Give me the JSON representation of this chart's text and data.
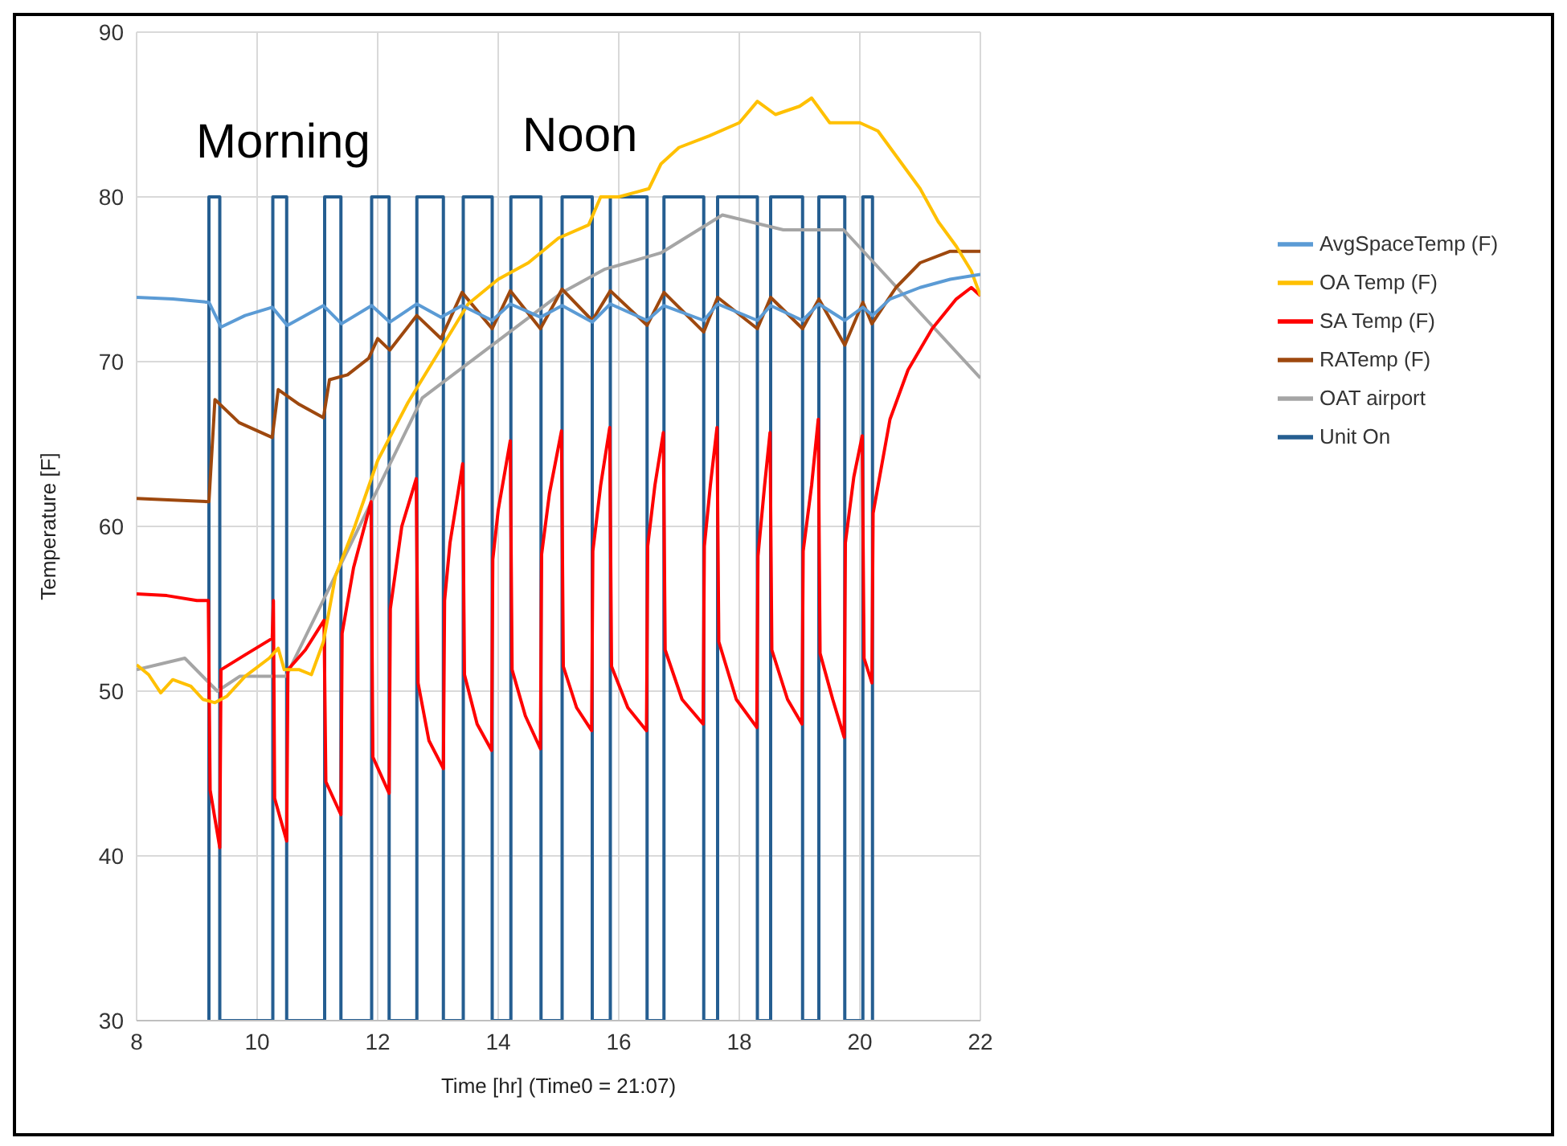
{
  "chart_data": {
    "type": "line",
    "xlabel": "Time [hr] (Time0 = 21:07)",
    "ylabel": "Temperature [F]",
    "xlim": [
      8,
      22
    ],
    "xticks": [
      8,
      10,
      12,
      14,
      16,
      18,
      20,
      22
    ],
    "ylim": [
      30,
      90
    ],
    "yticks": [
      30,
      40,
      50,
      60,
      70,
      80,
      90
    ],
    "grid": true,
    "legend": "right",
    "annotations": [
      "Morning",
      "Noon"
    ],
    "series": [
      {
        "name": "AvgSpaceTemp (F)",
        "color": "#5b9bd5",
        "x": [
          8,
          8.6,
          9.2,
          9.4,
          9.8,
          10.25,
          10.5,
          11.1,
          11.4,
          11.9,
          12.2,
          12.65,
          13.05,
          13.4,
          13.9,
          14.2,
          14.7,
          15.06,
          15.56,
          15.86,
          16.47,
          16.75,
          17.41,
          17.64,
          18.3,
          18.52,
          19.05,
          19.32,
          19.75,
          20.05,
          20.21,
          20.5,
          21,
          21.5,
          22
        ],
        "values": [
          73.9,
          73.8,
          73.6,
          72.1,
          72.8,
          73.3,
          72.2,
          73.4,
          72.3,
          73.4,
          72.4,
          73.5,
          72.7,
          73.4,
          72.5,
          73.5,
          72.7,
          73.4,
          72.4,
          73.5,
          72.5,
          73.4,
          72.5,
          73.5,
          72.5,
          73.4,
          72.5,
          73.5,
          72.5,
          73.3,
          72.8,
          73.8,
          74.5,
          75,
          75.3
        ]
      },
      {
        "name": "OA Temp (F)",
        "color": "#ffc000",
        "x": [
          8,
          8.2,
          8.4,
          8.6,
          8.9,
          9.1,
          9.3,
          9.5,
          9.8,
          10.2,
          10.35,
          10.45,
          10.7,
          10.9,
          11.1,
          11.3,
          11.6,
          12,
          12.5,
          13,
          13.5,
          14,
          14.5,
          15,
          15.5,
          15.7,
          16,
          16.3,
          16.5,
          16.7,
          17,
          17.5,
          18,
          18.3,
          18.6,
          19,
          19.2,
          19.5,
          20,
          20.3,
          20.6,
          21,
          21.3,
          21.6,
          21.85,
          22
        ],
        "values": [
          51.6,
          51,
          49.9,
          50.7,
          50.3,
          49.5,
          49.3,
          49.7,
          50.9,
          52,
          52.6,
          51.3,
          51.3,
          51,
          53,
          57,
          59.8,
          64,
          67.5,
          70.5,
          73.5,
          75,
          76,
          77.5,
          78.3,
          80,
          80,
          80.3,
          80.5,
          82,
          83,
          83.7,
          84.5,
          85.8,
          85,
          85.5,
          86,
          84.5,
          84.5,
          84,
          82.5,
          80.5,
          78.5,
          77,
          75.5,
          74
        ]
      },
      {
        "name": "SA Temp (F)",
        "color": "#ff0000",
        "x": [
          8,
          8.5,
          9,
          9.19,
          9.22,
          9.38,
          9.4,
          9.8,
          10.25,
          10.27,
          10.29,
          10.49,
          10.51,
          10.8,
          11.11,
          11.14,
          11.39,
          11.41,
          11.6,
          11.89,
          11.92,
          12.19,
          12.21,
          12.4,
          12.64,
          12.67,
          12.85,
          13.09,
          13.11,
          13.2,
          13.41,
          13.44,
          13.65,
          13.89,
          13.91,
          14,
          14.2,
          14.23,
          14.45,
          14.7,
          14.72,
          14.85,
          15.05,
          15.08,
          15.3,
          15.55,
          15.57,
          15.7,
          15.85,
          15.88,
          16.15,
          16.46,
          16.48,
          16.6,
          16.74,
          16.77,
          17.05,
          17.4,
          17.42,
          17.52,
          17.63,
          17.66,
          17.95,
          18.29,
          18.31,
          18.42,
          18.51,
          18.54,
          18.8,
          19.04,
          19.06,
          19.2,
          19.31,
          19.34,
          19.55,
          19.74,
          19.76,
          19.9,
          20.04,
          20.07,
          20.2,
          20.22,
          20.5,
          20.8,
          21.2,
          21.6,
          21.85,
          22
        ],
        "values": [
          55.9,
          55.8,
          55.5,
          55.5,
          44,
          40.5,
          51.3,
          52.2,
          53.2,
          55.5,
          43.5,
          40.9,
          51.3,
          52.5,
          54.3,
          44.5,
          42.5,
          53.5,
          57.5,
          61.5,
          46,
          43.8,
          55,
          60,
          62.9,
          50.5,
          47,
          45.3,
          55.5,
          59,
          63.8,
          51,
          48,
          46.4,
          58,
          61,
          65.2,
          51.3,
          48.5,
          46.5,
          58.3,
          62,
          65.8,
          51.5,
          49,
          47.6,
          58.5,
          62.5,
          66,
          51.5,
          49,
          47.6,
          58.8,
          62.5,
          65.7,
          52.5,
          49.5,
          48,
          58.8,
          62.5,
          66,
          53,
          49.5,
          47.8,
          58.2,
          62.5,
          65.7,
          52.5,
          49.5,
          48,
          58.5,
          62.5,
          66.5,
          52.3,
          49.5,
          47.2,
          59,
          63,
          65.5,
          52,
          50.5,
          60.8,
          66.5,
          69.5,
          72,
          73.8,
          74.5,
          74
        ]
      },
      {
        "name": "RATemp (F)",
        "color": "#9e480e",
        "x": [
          8,
          8.6,
          9.2,
          9.3,
          9.7,
          10.25,
          10.35,
          10.7,
          11.1,
          11.2,
          11.5,
          11.85,
          12,
          12.2,
          12.65,
          13.05,
          13.4,
          13.9,
          14.2,
          14.7,
          15.06,
          15.56,
          15.86,
          16.47,
          16.75,
          17.41,
          17.64,
          18.3,
          18.52,
          19.05,
          19.32,
          19.75,
          20.05,
          20.2,
          20.6,
          21,
          21.5,
          22
        ],
        "values": [
          61.7,
          61.6,
          61.5,
          67.7,
          66.3,
          65.4,
          68.3,
          67.4,
          66.6,
          68.9,
          69.2,
          70.2,
          71.4,
          70.7,
          72.8,
          71.4,
          74.2,
          72,
          74.3,
          72,
          74.4,
          72.5,
          74.3,
          72.2,
          74.2,
          71.8,
          73.9,
          72,
          73.9,
          72,
          73.8,
          71,
          73.6,
          72.3,
          74.5,
          76,
          76.7,
          76.7
        ]
      },
      {
        "name": "OAT airport",
        "color": "#a5a5a5",
        "x": [
          8,
          8.8,
          9.34,
          9.71,
          10.48,
          12.74,
          15.06,
          15.76,
          16.7,
          17.72,
          18.73,
          19.73,
          22
        ],
        "values": [
          51.3,
          52,
          50,
          50.9,
          50.9,
          67.8,
          74.2,
          75.6,
          76.6,
          78.9,
          78,
          78,
          69
        ]
      },
      {
        "name": "Unit On",
        "color": "#255e91",
        "x": [
          9.2,
          9.2,
          9.38,
          9.38,
          10.26,
          10.26,
          10.49,
          10.49,
          11.12,
          11.12,
          11.39,
          11.39,
          11.9,
          11.9,
          12.19,
          12.19,
          12.65,
          12.65,
          13.09,
          13.09,
          13.42,
          13.42,
          13.9,
          13.9,
          14.21,
          14.21,
          14.71,
          14.71,
          15.06,
          15.06,
          15.56,
          15.56,
          15.86,
          15.86,
          16.47,
          16.47,
          16.75,
          16.75,
          17.41,
          17.41,
          17.64,
          17.64,
          18.3,
          18.3,
          18.52,
          18.52,
          19.05,
          19.05,
          19.32,
          19.32,
          19.75,
          19.75,
          20.05,
          20.05,
          20.21,
          20.21
        ],
        "values": [
          30,
          80,
          80,
          30,
          30,
          80,
          80,
          30,
          30,
          80,
          80,
          30,
          30,
          80,
          80,
          30,
          30,
          80,
          80,
          30,
          30,
          80,
          80,
          30,
          30,
          80,
          80,
          30,
          30,
          80,
          80,
          30,
          30,
          80,
          80,
          30,
          30,
          80,
          80,
          30,
          30,
          80,
          80,
          30,
          30,
          80,
          80,
          30,
          30,
          80,
          80,
          30,
          30,
          80,
          80,
          30
        ]
      }
    ]
  }
}
